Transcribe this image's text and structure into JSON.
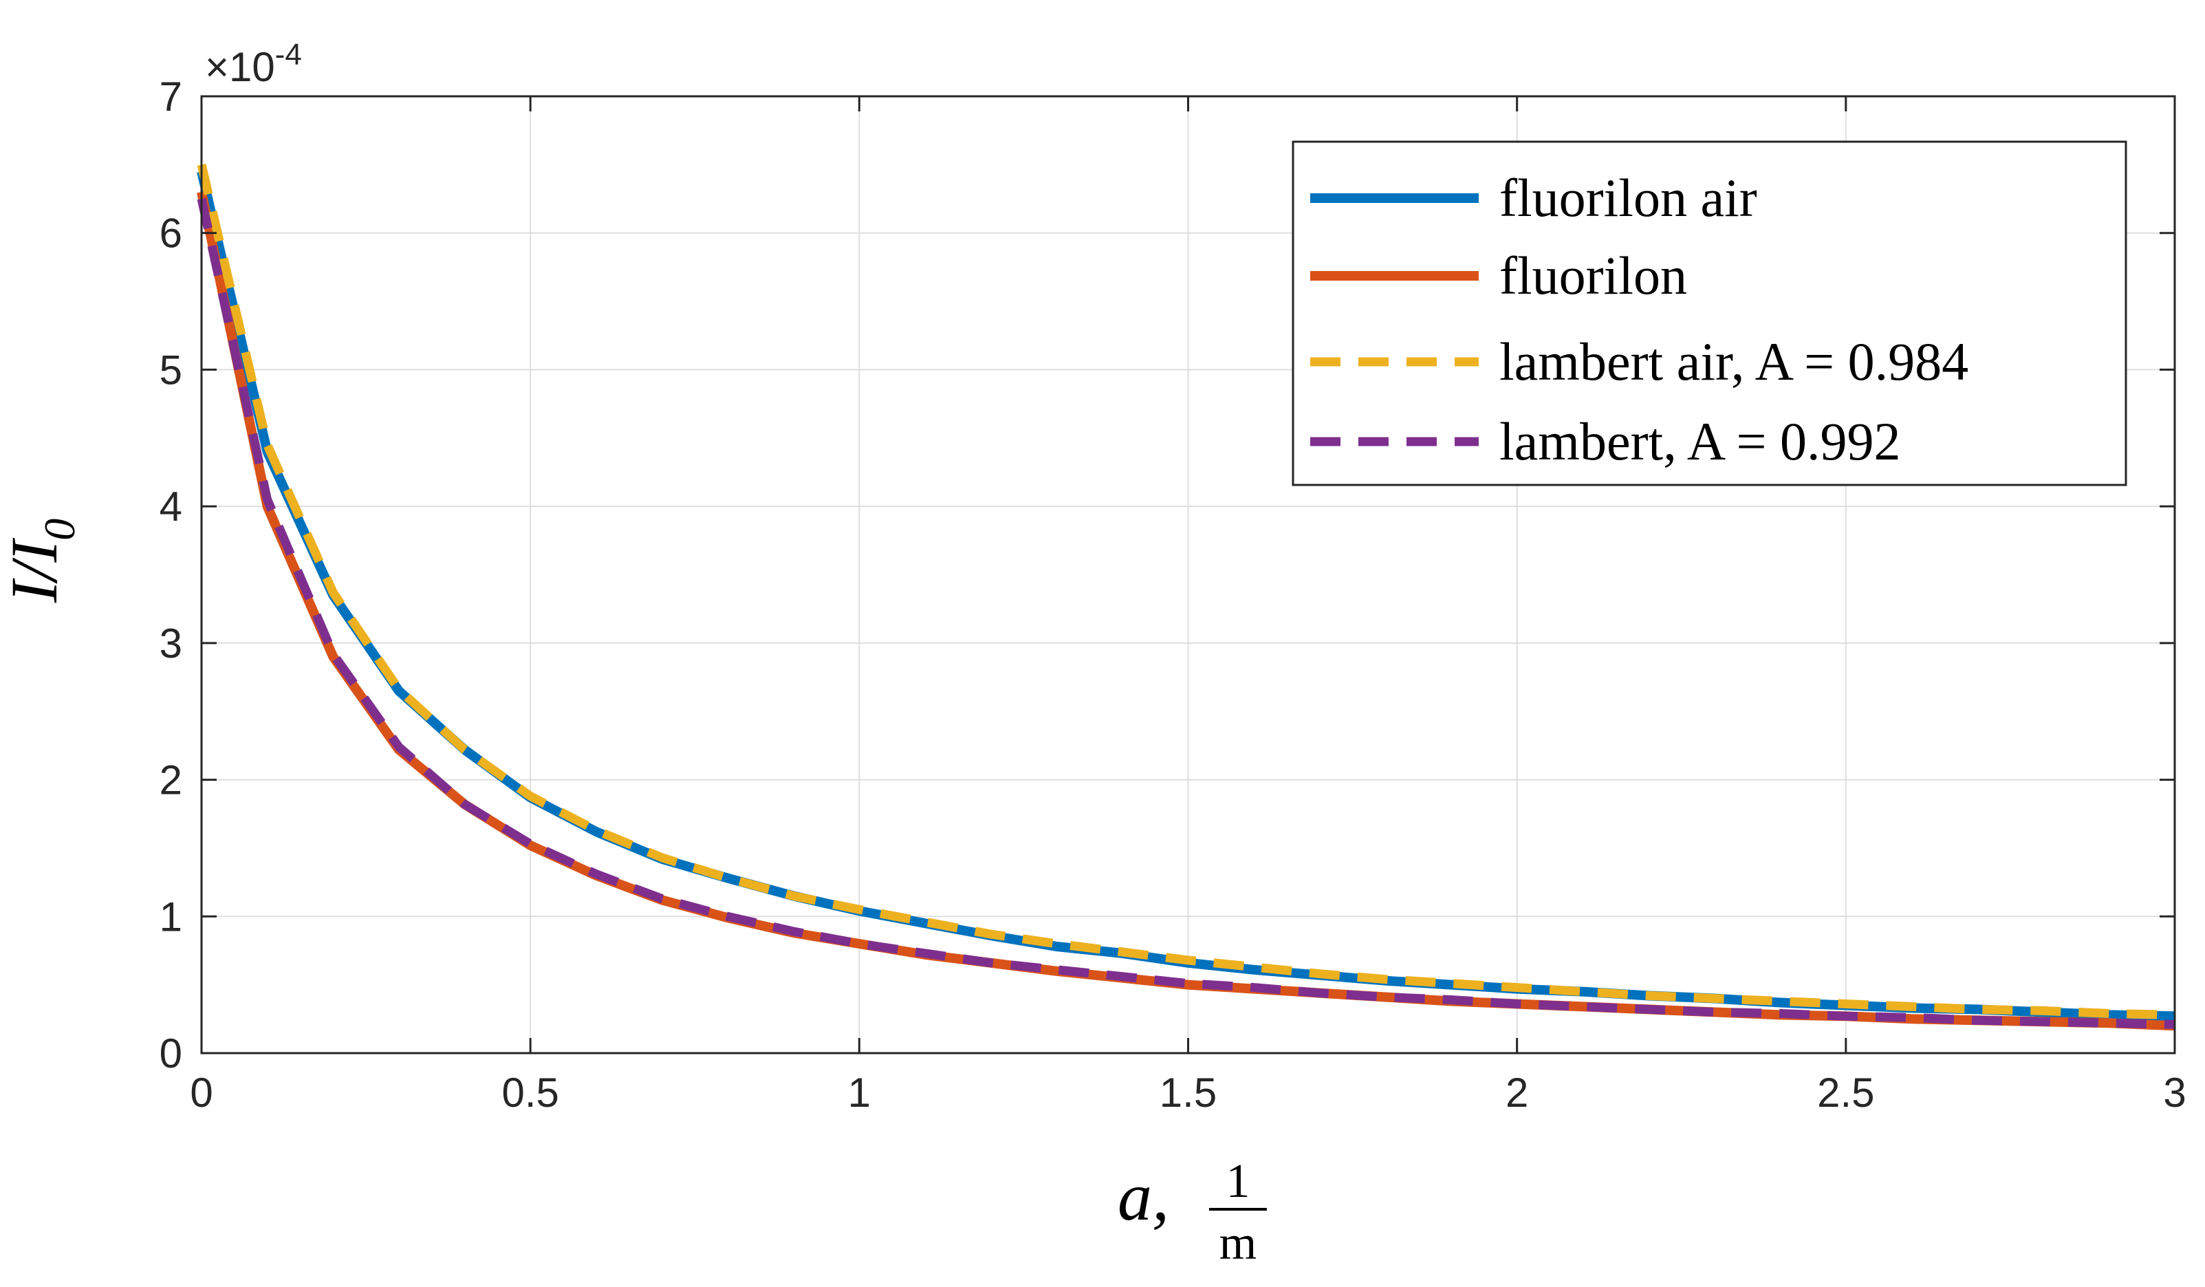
{
  "chart_data": {
    "type": "line",
    "xlabel_symbol": "a,",
    "xlabel_unit_num": "1",
    "xlabel_unit_den": "m",
    "ylabel_main": "I/I",
    "ylabel_sub": "0",
    "y_multiplier_base": "×10",
    "y_multiplier_exp": "-4",
    "xlim": [
      0,
      3
    ],
    "ylim": [
      0,
      7
    ],
    "xticks": [
      0,
      0.5,
      1,
      1.5,
      2,
      2.5,
      3
    ],
    "xtick_labels": [
      "0",
      "0.5",
      "1",
      "1.5",
      "2",
      "2.5",
      "3"
    ],
    "yticks": [
      0,
      1,
      2,
      3,
      4,
      5,
      6,
      7
    ],
    "ytick_labels": [
      "0",
      "1",
      "2",
      "3",
      "4",
      "5",
      "6",
      "7"
    ],
    "grid": true,
    "legend_position": "top-right",
    "x": [
      0,
      0.1,
      0.2,
      0.3,
      0.4,
      0.5,
      0.6,
      0.7,
      0.8,
      0.9,
      1.0,
      1.1,
      1.2,
      1.3,
      1.4,
      1.5,
      1.6,
      1.7,
      1.8,
      1.9,
      2.0,
      2.1,
      2.2,
      2.3,
      2.4,
      2.5,
      2.6,
      2.7,
      2.8,
      2.9,
      3.0
    ],
    "series": [
      {
        "name": "fluorilon air",
        "color": "#0072BD",
        "dash": "solid",
        "values": [
          6.45,
          4.4,
          3.35,
          2.65,
          2.22,
          1.87,
          1.62,
          1.42,
          1.28,
          1.15,
          1.04,
          0.95,
          0.86,
          0.78,
          0.73,
          0.66,
          0.61,
          0.57,
          0.53,
          0.5,
          0.47,
          0.45,
          0.42,
          0.4,
          0.37,
          0.35,
          0.33,
          0.32,
          0.3,
          0.28,
          0.27
        ]
      },
      {
        "name": "fluorilon",
        "color": "#D95319",
        "dash": "solid",
        "values": [
          6.3,
          4.0,
          2.9,
          2.22,
          1.82,
          1.52,
          1.3,
          1.12,
          0.99,
          0.88,
          0.8,
          0.72,
          0.66,
          0.6,
          0.55,
          0.5,
          0.47,
          0.44,
          0.41,
          0.38,
          0.36,
          0.34,
          0.32,
          0.3,
          0.28,
          0.27,
          0.25,
          0.24,
          0.23,
          0.22,
          0.2
        ]
      },
      {
        "name": "lambert air, A = 0.984",
        "color": "#EDB120",
        "dash": "dashed",
        "values": [
          6.5,
          4.45,
          3.37,
          2.66,
          2.22,
          1.88,
          1.63,
          1.43,
          1.28,
          1.15,
          1.05,
          0.96,
          0.87,
          0.8,
          0.74,
          0.68,
          0.63,
          0.58,
          0.54,
          0.51,
          0.48,
          0.45,
          0.42,
          0.4,
          0.38,
          0.36,
          0.34,
          0.32,
          0.31,
          0.29,
          0.28
        ]
      },
      {
        "name": "lambert, A = 0.992",
        "color": "#7E2F8E",
        "dash": "dashed",
        "values": [
          6.25,
          4.05,
          2.92,
          2.24,
          1.82,
          1.53,
          1.31,
          1.13,
          1.0,
          0.89,
          0.8,
          0.73,
          0.66,
          0.61,
          0.56,
          0.51,
          0.48,
          0.44,
          0.41,
          0.39,
          0.36,
          0.34,
          0.32,
          0.3,
          0.29,
          0.27,
          0.26,
          0.24,
          0.23,
          0.22,
          0.21
        ]
      }
    ]
  }
}
